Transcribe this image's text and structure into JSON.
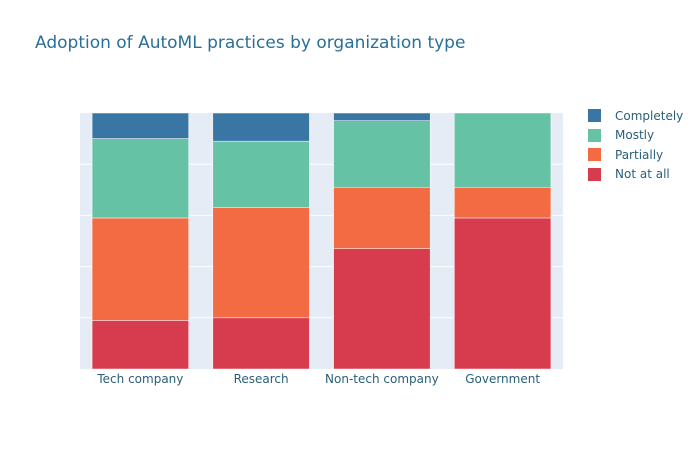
{
  "chart_data": {
    "type": "bar",
    "stacked": true,
    "title": "Adoption of AutoML practices by organization type",
    "xlabel": "",
    "ylabel": "",
    "categories": [
      "Tech company",
      "Research",
      "Non-tech company",
      "Government"
    ],
    "ylim": [
      0,
      100
    ],
    "grid": true,
    "legend_position": "top-right",
    "series": [
      {
        "name": "Not at all",
        "color": "#d63c4e",
        "values": [
          19,
          20,
          47,
          59
        ]
      },
      {
        "name": "Partially",
        "color": "#f26b43",
        "values": [
          40,
          43,
          24,
          12
        ]
      },
      {
        "name": "Mostly",
        "color": "#66c2a4",
        "values": [
          31,
          26,
          26,
          29
        ]
      },
      {
        "name": "Completely",
        "color": "#3a76a3",
        "values": [
          10,
          11,
          3,
          0
        ]
      }
    ],
    "legend_order": [
      "Completely",
      "Mostly",
      "Partially",
      "Not at all"
    ]
  },
  "colors": {
    "plot_background": "#e5ecf6",
    "gridline": "#ffffff",
    "title": "#2a6f97",
    "tick_text": "#2a5f7a"
  }
}
